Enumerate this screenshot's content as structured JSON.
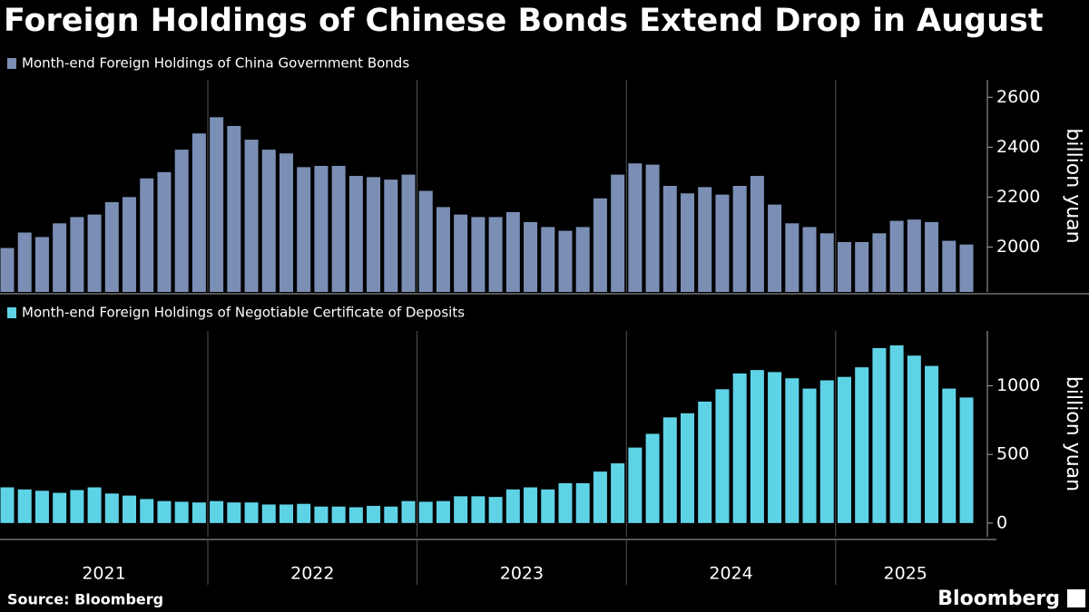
{
  "title": "Foreign Holdings of Chinese Bonds Extend Drop in August",
  "source": "Source: Bloomberg",
  "brand": "Bloomberg",
  "years": [
    "2021",
    "2022",
    "2023",
    "2024",
    "2025"
  ],
  "chart_data": [
    {
      "type": "bar",
      "series": [
        {
          "name": "Month-end Foreign Holdings of China Government Bonds",
          "color": "#7b8fb5",
          "values": [
            1996,
            2058,
            2040,
            2095,
            2120,
            2130,
            2180,
            2200,
            2275,
            2300,
            2390,
            2455,
            2520,
            2485,
            2430,
            2390,
            2375,
            2320,
            2325,
            2325,
            2285,
            2280,
            2270,
            2290,
            2225,
            2160,
            2130,
            2120,
            2120,
            2140,
            2100,
            2080,
            2065,
            2080,
            2195,
            2290,
            2335,
            2330,
            2245,
            2215,
            2240,
            2210,
            2245,
            2285,
            2170,
            2095,
            2080,
            2055,
            2020,
            2020,
            2055,
            2105,
            2110,
            2100,
            2025,
            2010
          ]
        }
      ],
      "y_label": "billion yuan",
      "ylim": [
        1820,
        2670
      ],
      "yticks": [
        2000,
        2200,
        2400,
        2600
      ]
    },
    {
      "type": "bar",
      "series": [
        {
          "name": "Month-end Foreign Holdings of Negotiable Certificate of Deposits",
          "color": "#5fd3e6",
          "values": [
            260,
            245,
            235,
            220,
            240,
            260,
            215,
            200,
            175,
            160,
            155,
            150,
            160,
            150,
            150,
            135,
            135,
            140,
            120,
            120,
            115,
            125,
            120,
            160,
            155,
            160,
            195,
            195,
            190,
            245,
            260,
            245,
            290,
            290,
            375,
            435,
            550,
            650,
            770,
            800,
            885,
            975,
            1090,
            1115,
            1100,
            1055,
            980,
            1040,
            1065,
            1135,
            1275,
            1295,
            1220,
            1145,
            980,
            915
          ]
        }
      ],
      "y_label": "billion yuan",
      "ylim": [
        -100,
        1400
      ],
      "yticks": [
        0,
        500,
        1000
      ]
    }
  ]
}
